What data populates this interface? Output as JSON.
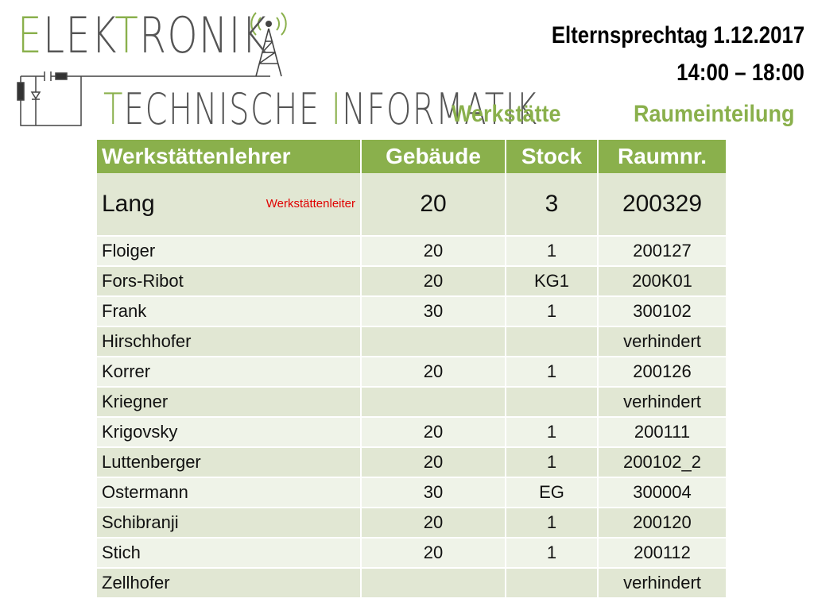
{
  "logo": {
    "line1_accent": "E",
    "line1_rest": "LEK",
    "line1_accent2": "T",
    "line1_rest2": "RONIK",
    "line2_accent": "T",
    "line2_rest": "ECHNISCHE ",
    "line2_accent2": "I",
    "line2_rest2": "NFORMATIK",
    "accent_color": "#8ab04c"
  },
  "header": {
    "date": "Elternsprechtag 1.12.2017",
    "time": "14:00 – 18:00",
    "subtitle_left": "Werkstätte",
    "subtitle_right": "Raumeinteilung"
  },
  "table": {
    "headers": [
      "Werkstättenlehrer",
      "Gebäude",
      "Stock",
      "Raumnr."
    ],
    "lead": {
      "name": "Lang",
      "note": "Werkstättenleiter",
      "building": "20",
      "floor": "3",
      "room": "200329"
    },
    "rows": [
      {
        "name": "Floiger",
        "building": "20",
        "floor": "1",
        "room": "200127"
      },
      {
        "name": "Fors-Ribot",
        "building": "20",
        "floor": "KG1",
        "room": "200K01"
      },
      {
        "name": "Frank",
        "building": "30",
        "floor": "1",
        "room": "300102"
      },
      {
        "name": "Hirschhofer",
        "building": "",
        "floor": "",
        "room": "verhindert"
      },
      {
        "name": "Korrer",
        "building": "20",
        "floor": "1",
        "room": "200126"
      },
      {
        "name": "Kriegner",
        "building": "",
        "floor": "",
        "room": "verhindert"
      },
      {
        "name": "Krigovsky",
        "building": "20",
        "floor": "1",
        "room": "200111"
      },
      {
        "name": "Luttenberger",
        "building": "20",
        "floor": "1",
        "room": "200102_2"
      },
      {
        "name": "Ostermann",
        "building": "30",
        "floor": "EG",
        "room": "300004"
      },
      {
        "name": "Schibranji",
        "building": "20",
        "floor": "1",
        "room": "200120"
      },
      {
        "name": "Stich",
        "building": "20",
        "floor": "1",
        "room": "200112"
      },
      {
        "name": "Zellhofer",
        "building": "",
        "floor": "",
        "room": "verhindert"
      }
    ],
    "colors": {
      "header_bg": "#8ab04c",
      "highlight_red": "#e00000",
      "absent_blue": "#1ea0d8"
    }
  }
}
